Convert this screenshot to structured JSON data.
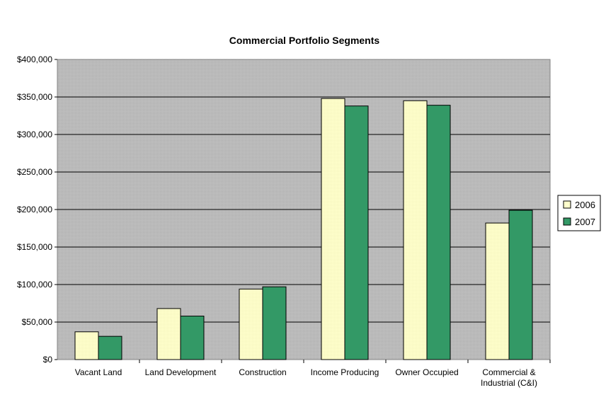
{
  "chart_data": {
    "type": "bar",
    "title": "Commercial Portfolio Segments",
    "xlabel": "",
    "ylabel": "",
    "categories": [
      [
        "Vacant Land"
      ],
      [
        "Land Development"
      ],
      [
        "Construction"
      ],
      [
        "Income Producing"
      ],
      [
        "Owner Occupied"
      ],
      [
        "Commercial &",
        "Industrial (C&I)"
      ]
    ],
    "series": [
      {
        "name": "2006",
        "color": "#FFFFCC",
        "values": [
          37000,
          68000,
          94000,
          348000,
          345000,
          182000
        ]
      },
      {
        "name": "2007",
        "color": "#339966",
        "values": [
          31000,
          58000,
          97000,
          338000,
          339000,
          199000
        ]
      }
    ],
    "ylim": [
      0,
      400000
    ],
    "yticks": [
      "$0",
      "$50,000",
      "$100,000",
      "$150,000",
      "$200,000",
      "$250,000",
      "$300,000",
      "$350,000",
      "$400,000"
    ],
    "grid": true,
    "legend_position": "right",
    "plot_background": "#C0C0C0"
  }
}
